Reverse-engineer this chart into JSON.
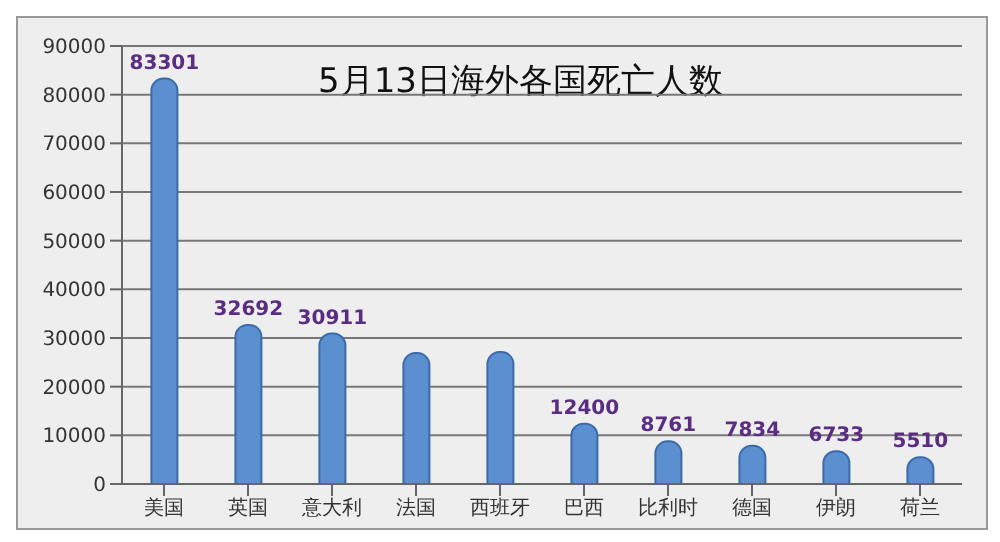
{
  "chart_data": {
    "type": "bar",
    "title": "5月13日海外各国死亡人数",
    "categories": [
      "美国",
      "英国",
      "意大利",
      "法国",
      "西班牙",
      "巴西",
      "比利时",
      "德国",
      "伊朗",
      "荷兰"
    ],
    "values": [
      83301,
      32692,
      30911,
      26900,
      27100,
      12400,
      8761,
      7834,
      6733,
      5510
    ],
    "value_labels": [
      "83301",
      "32692",
      "30911",
      null,
      null,
      "12400",
      "8761",
      "7834",
      "6733",
      "5510"
    ],
    "color": "#5b8fd0",
    "ylim": [
      0,
      90000
    ],
    "yticks": [
      0,
      10000,
      20000,
      30000,
      40000,
      50000,
      60000,
      70000,
      80000,
      90000
    ],
    "grid": "y"
  }
}
